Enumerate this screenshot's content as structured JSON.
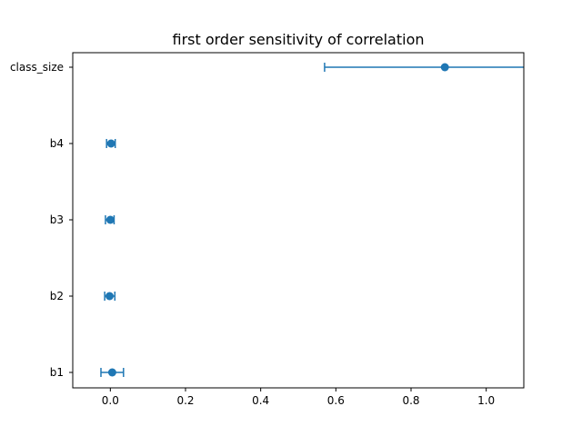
{
  "chart_data": {
    "type": "scatter",
    "title": "first order sensitivity of correlation",
    "xlabel": "",
    "ylabel": "",
    "xlim": [
      -0.1,
      1.1
    ],
    "grid": false,
    "x_ticks": [
      "0.0",
      "0.2",
      "0.4",
      "0.6",
      "0.8",
      "1.0"
    ],
    "x_tick_values": [
      0.0,
      0.2,
      0.4,
      0.6,
      0.8,
      1.0
    ],
    "categories": [
      "b1",
      "b2",
      "b3",
      "b4",
      "class_size"
    ],
    "series": [
      {
        "values": [
          0.005,
          -0.002,
          0.0,
          0.002,
          0.89
        ],
        "err_low": [
          -0.025,
          -0.015,
          -0.013,
          -0.01,
          0.57
        ],
        "err_high": [
          0.035,
          0.012,
          0.01,
          0.013,
          1.1
        ],
        "color": "#1f77b4"
      }
    ]
  }
}
